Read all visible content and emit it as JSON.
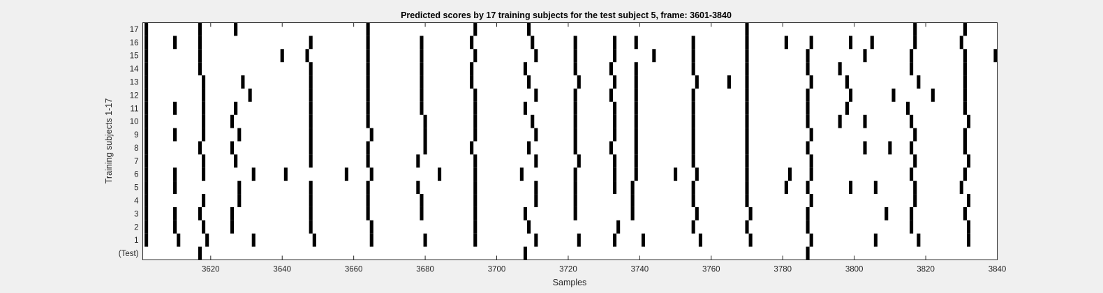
{
  "chart_data": {
    "type": "heatmap",
    "title": "Predicted scores by 17 training subjects for the test subject 5, frame: 3601-3840",
    "xlabel": "Samples",
    "ylabel": "Training subjects 1-17",
    "xlim": [
      3601,
      3840
    ],
    "x_ticks": [
      3620,
      3640,
      3660,
      3680,
      3700,
      3720,
      3740,
      3760,
      3780,
      3800,
      3820,
      3840
    ],
    "row_labels": [
      "(Test)",
      "1",
      "2",
      "3",
      "4",
      "5",
      "6",
      "7",
      "8",
      "9",
      "10",
      "11",
      "12",
      "13",
      "14",
      "15",
      "16",
      "17"
    ],
    "colors": {
      "background": "#ffffff",
      "mark": "#000000",
      "figure": "#f0f0f0"
    },
    "rows": [
      {
        "label": "(Test)",
        "marks": [
          3617,
          3708,
          3787
        ]
      },
      {
        "label": "1",
        "marks": [
          3602,
          3611,
          3619,
          3632,
          3649,
          3665,
          3680,
          3694,
          3711,
          3723,
          3733,
          3741,
          3757,
          3771,
          3788,
          3806,
          3818,
          3832
        ]
      },
      {
        "label": "2",
        "marks": [
          3602,
          3610,
          3618,
          3626,
          3648,
          3665,
          3694,
          3709,
          3734,
          3755,
          3770,
          3787,
          3816,
          3832
        ]
      },
      {
        "label": "3",
        "marks": [
          3602,
          3610,
          3617,
          3626,
          3648,
          3664,
          3679,
          3694,
          3708,
          3722,
          3738,
          3756,
          3771,
          3787,
          3809,
          3816,
          3831
        ]
      },
      {
        "label": "4",
        "marks": [
          3602,
          3618,
          3628,
          3648,
          3664,
          3679,
          3694,
          3711,
          3722,
          3738,
          3755,
          3770,
          3788,
          3817,
          3832
        ]
      },
      {
        "label": "5",
        "marks": [
          3602,
          3610,
          3628,
          3648,
          3664,
          3678,
          3694,
          3711,
          3722,
          3733,
          3738,
          3755,
          3770,
          3781,
          3787,
          3799,
          3806,
          3817,
          3830
        ]
      },
      {
        "label": "6",
        "marks": [
          3602,
          3610,
          3618,
          3632,
          3641,
          3658,
          3665,
          3684,
          3694,
          3707,
          3722,
          3733,
          3739,
          3750,
          3756,
          3770,
          3782,
          3788,
          3816,
          3831
        ]
      },
      {
        "label": "7",
        "marks": [
          3602,
          3618,
          3627,
          3648,
          3664,
          3678,
          3694,
          3711,
          3723,
          3733,
          3739,
          3755,
          3770,
          3788,
          3817,
          3832
        ]
      },
      {
        "label": "8",
        "marks": [
          3602,
          3617,
          3626,
          3648,
          3664,
          3680,
          3693,
          3709,
          3722,
          3732,
          3739,
          3755,
          3770,
          3787,
          3803,
          3810,
          3816,
          3831
        ]
      },
      {
        "label": "9",
        "marks": [
          3602,
          3610,
          3618,
          3628,
          3648,
          3665,
          3680,
          3694,
          3711,
          3722,
          3733,
          3739,
          3755,
          3770,
          3788,
          3817,
          3831
        ]
      },
      {
        "label": "10",
        "marks": [
          3602,
          3618,
          3626,
          3648,
          3664,
          3680,
          3694,
          3710,
          3722,
          3733,
          3739,
          3755,
          3770,
          3787,
          3796,
          3803,
          3816,
          3832
        ]
      },
      {
        "label": "11",
        "marks": [
          3602,
          3610,
          3618,
          3627,
          3648,
          3664,
          3679,
          3694,
          3708,
          3722,
          3733,
          3739,
          3755,
          3770,
          3787,
          3798,
          3815,
          3831
        ]
      },
      {
        "label": "12",
        "marks": [
          3602,
          3618,
          3631,
          3648,
          3664,
          3679,
          3694,
          3711,
          3722,
          3732,
          3739,
          3755,
          3770,
          3787,
          3799,
          3811,
          3822,
          3831
        ]
      },
      {
        "label": "13",
        "marks": [
          3602,
          3618,
          3629,
          3648,
          3664,
          3679,
          3693,
          3709,
          3723,
          3733,
          3739,
          3756,
          3765,
          3770,
          3788,
          3798,
          3818,
          3831
        ]
      },
      {
        "label": "14",
        "marks": [
          3602,
          3617,
          3648,
          3664,
          3679,
          3693,
          3708,
          3722,
          3732,
          3739,
          3755,
          3770,
          3787,
          3796,
          3816,
          3831
        ]
      },
      {
        "label": "15",
        "marks": [
          3602,
          3617,
          3640,
          3647,
          3664,
          3679,
          3694,
          3711,
          3722,
          3733,
          3744,
          3755,
          3770,
          3787,
          3803,
          3816,
          3831,
          3840
        ]
      },
      {
        "label": "16",
        "marks": [
          3602,
          3610,
          3617,
          3648,
          3664,
          3679,
          3693,
          3710,
          3722,
          3733,
          3739,
          3755,
          3770,
          3781,
          3788,
          3799,
          3805,
          3817,
          3830
        ]
      },
      {
        "label": "17",
        "marks": [
          3602,
          3617,
          3627,
          3664,
          3694,
          3709,
          3770,
          3817,
          3831
        ]
      }
    ]
  }
}
